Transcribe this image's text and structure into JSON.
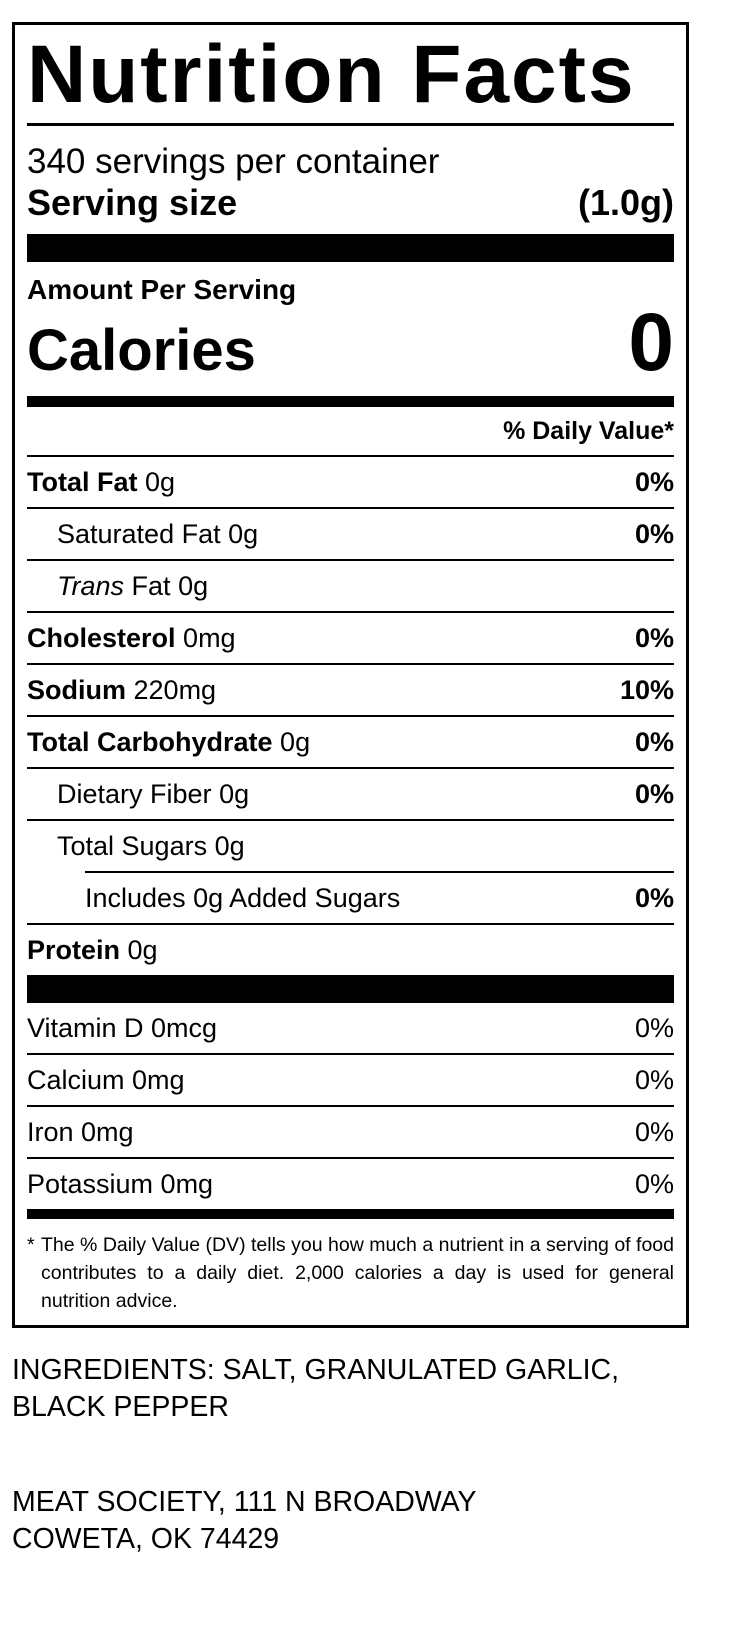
{
  "label": {
    "title": "Nutrition Facts",
    "servings_per_container": "340 servings per container",
    "serving_size_label": "Serving size",
    "serving_size_value": "(1.0g)",
    "amount_per_serving": "Amount Per Serving",
    "calories_label": "Calories",
    "calories_value": "0",
    "daily_value_header": "% Daily Value*",
    "nutrients": [
      {
        "name": "Total Fat",
        "amount": "0g",
        "dv": "0%"
      },
      {
        "name": "Saturated Fat",
        "amount": "0g",
        "dv": "0%"
      },
      {
        "name": "Trans",
        "name_rest": "Fat",
        "amount": "0g"
      },
      {
        "name": "Cholesterol",
        "amount": "0mg",
        "dv": "0%"
      },
      {
        "name": "Sodium",
        "amount": "220mg",
        "dv": "10%"
      },
      {
        "name": "Total Carbohydrate",
        "amount": "0g",
        "dv": "0%"
      },
      {
        "name": "Dietary Fiber",
        "amount": "0g",
        "dv": "0%"
      },
      {
        "name": "Total Sugars",
        "amount": "0g"
      },
      {
        "name": "Includes 0g Added Sugars",
        "dv": "0%"
      },
      {
        "name": "Protein",
        "amount": "0g"
      }
    ],
    "vitamins": [
      {
        "name": "Vitamin D 0mcg",
        "dv": "0%"
      },
      {
        "name": "Calcium 0mg",
        "dv": "0%"
      },
      {
        "name": "Iron 0mg",
        "dv": "0%"
      },
      {
        "name": "Potassium 0mg",
        "dv": "0%"
      }
    ],
    "footnote_star": "*",
    "footnote": "The % Daily Value (DV) tells you how much a nutrient in a serving of food contributes to a daily diet. 2,000 calories a day is used for general nutrition advice."
  },
  "ingredients": {
    "line1": "INGREDIENTS: SALT, GRANULATED GARLIC,",
    "line2": "BLACK PEPPER"
  },
  "address": {
    "line1": "MEAT SOCIETY, 111 N BROADWAY",
    "line2": "COWETA, OK 74429"
  }
}
